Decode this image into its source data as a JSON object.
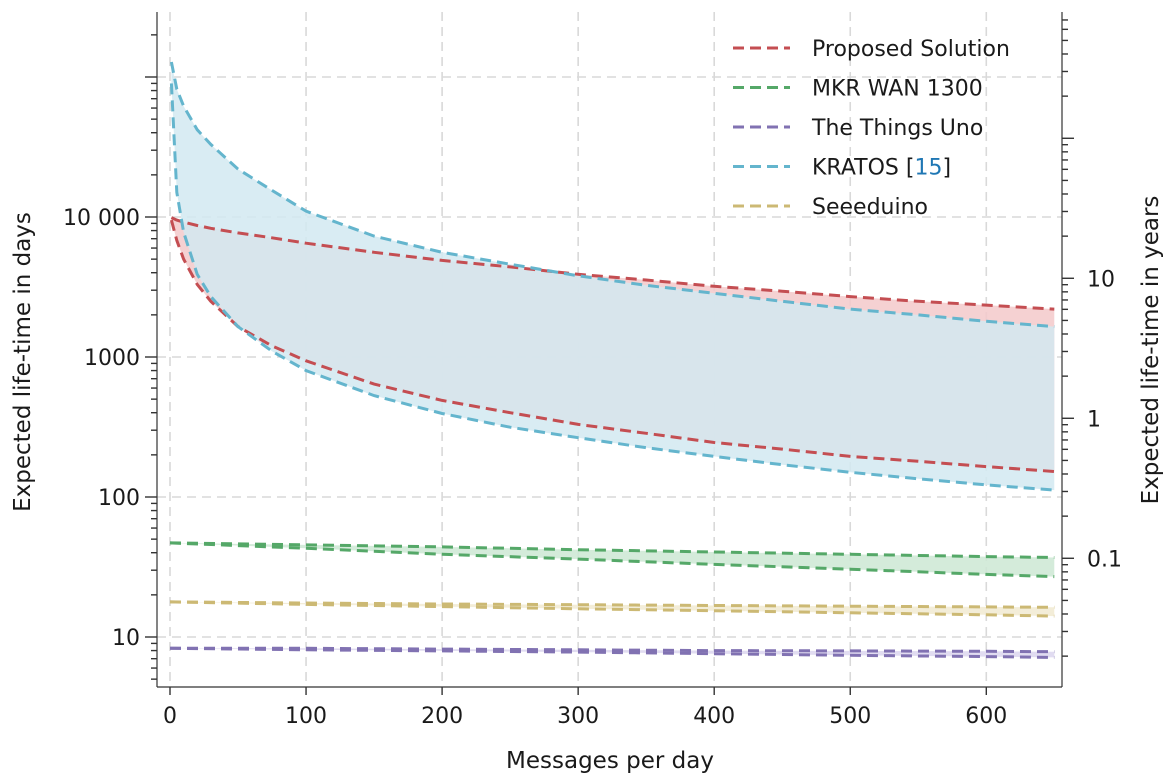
{
  "chart_data": {
    "type": "line",
    "xlabel": "Messages per day",
    "ylabel": "Expected life-time in days",
    "y2label": "Expected life-time in years",
    "xlim": [
      -8,
      655
    ],
    "ylim": [
      4.4,
      190000
    ],
    "yscale": "log",
    "y2scale": "log",
    "grid": true,
    "legend_position": "top-right",
    "x_ticks": [
      {
        "value": 0,
        "label": "0"
      },
      {
        "value": 100,
        "label": "100"
      },
      {
        "value": 200,
        "label": "200"
      },
      {
        "value": 300,
        "label": "300"
      },
      {
        "value": 400,
        "label": "400"
      },
      {
        "value": 500,
        "label": "500"
      },
      {
        "value": 600,
        "label": "600"
      }
    ],
    "y_ticks": [
      {
        "value": 10,
        "label": "10"
      },
      {
        "value": 100,
        "label": "100"
      },
      {
        "value": 1000,
        "label": "1000"
      },
      {
        "value": 10000,
        "label": "10 000"
      }
    ],
    "y2_ticks": [
      {
        "value": 0.1,
        "label": "0.1"
      },
      {
        "value": 1,
        "label": "1"
      },
      {
        "value": 10,
        "label": "10"
      }
    ],
    "series": [
      {
        "name": "Proposed Solution",
        "color": "#c44e52",
        "fill_color": "#f3c9ca",
        "x": [
          1,
          5,
          10,
          20,
          30,
          50,
          75,
          100,
          150,
          200,
          250,
          300,
          350,
          400,
          450,
          500,
          550,
          600,
          650
        ],
        "upper": [
          9900,
          9500,
          9200,
          8700,
          8300,
          7700,
          7100,
          6500,
          5600,
          4900,
          4400,
          3900,
          3550,
          3200,
          2950,
          2700,
          2500,
          2350,
          2200
        ],
        "lower": [
          9500,
          6800,
          5000,
          3300,
          2500,
          1650,
          1200,
          940,
          640,
          490,
          400,
          330,
          285,
          245,
          220,
          195,
          180,
          165,
          152
        ]
      },
      {
        "name": "MKR WAN 1300",
        "color": "#55a868",
        "fill_color": "#cde8d3",
        "x": [
          0,
          100,
          200,
          300,
          400,
          500,
          600,
          650
        ],
        "upper": [
          47,
          45.5,
          44,
          42,
          40.5,
          39,
          37.5,
          37
        ],
        "lower": [
          47,
          43,
          39,
          36,
          33,
          30.5,
          28,
          27
        ]
      },
      {
        "name": "The Things Uno",
        "color": "#8172b2",
        "fill_color": "#dcd6ee",
        "x": [
          0,
          100,
          200,
          300,
          400,
          500,
          600,
          650
        ],
        "upper": [
          8.3,
          8.3,
          8.2,
          8.1,
          8.0,
          7.95,
          7.9,
          7.85
        ],
        "lower": [
          8.3,
          8.1,
          7.95,
          7.8,
          7.6,
          7.4,
          7.25,
          7.15
        ]
      },
      {
        "name": "KRATOS [15]",
        "legend_prefix": "KRATOS [",
        "legend_ref": "15",
        "legend_suffix": "]",
        "ref_color": "#1f77b4",
        "color": "#64b5cd",
        "fill_color": "#d2e9f1",
        "x": [
          1,
          5,
          10,
          20,
          30,
          50,
          75,
          100,
          150,
          200,
          250,
          300,
          350,
          400,
          450,
          500,
          550,
          600,
          650
        ],
        "upper": [
          128000,
          82000,
          62000,
          42000,
          33000,
          22000,
          15500,
          11000,
          7300,
          5600,
          4600,
          3800,
          3250,
          2850,
          2500,
          2200,
          2000,
          1800,
          1650
        ],
        "lower": [
          90000,
          15000,
          7800,
          3900,
          2700,
          1650,
          1100,
          800,
          530,
          395,
          315,
          265,
          225,
          195,
          170,
          150,
          135,
          122,
          112
        ]
      },
      {
        "name": "Seeeduino",
        "color": "#ccb974",
        "fill_color": "#f1ead1",
        "x": [
          0,
          100,
          200,
          300,
          400,
          500,
          600,
          650
        ],
        "upper": [
          17.8,
          17.5,
          17.2,
          17.0,
          16.8,
          16.6,
          16.4,
          16.3
        ],
        "lower": [
          17.8,
          17.1,
          16.5,
          15.9,
          15.4,
          14.9,
          14.4,
          14.1
        ]
      }
    ]
  }
}
